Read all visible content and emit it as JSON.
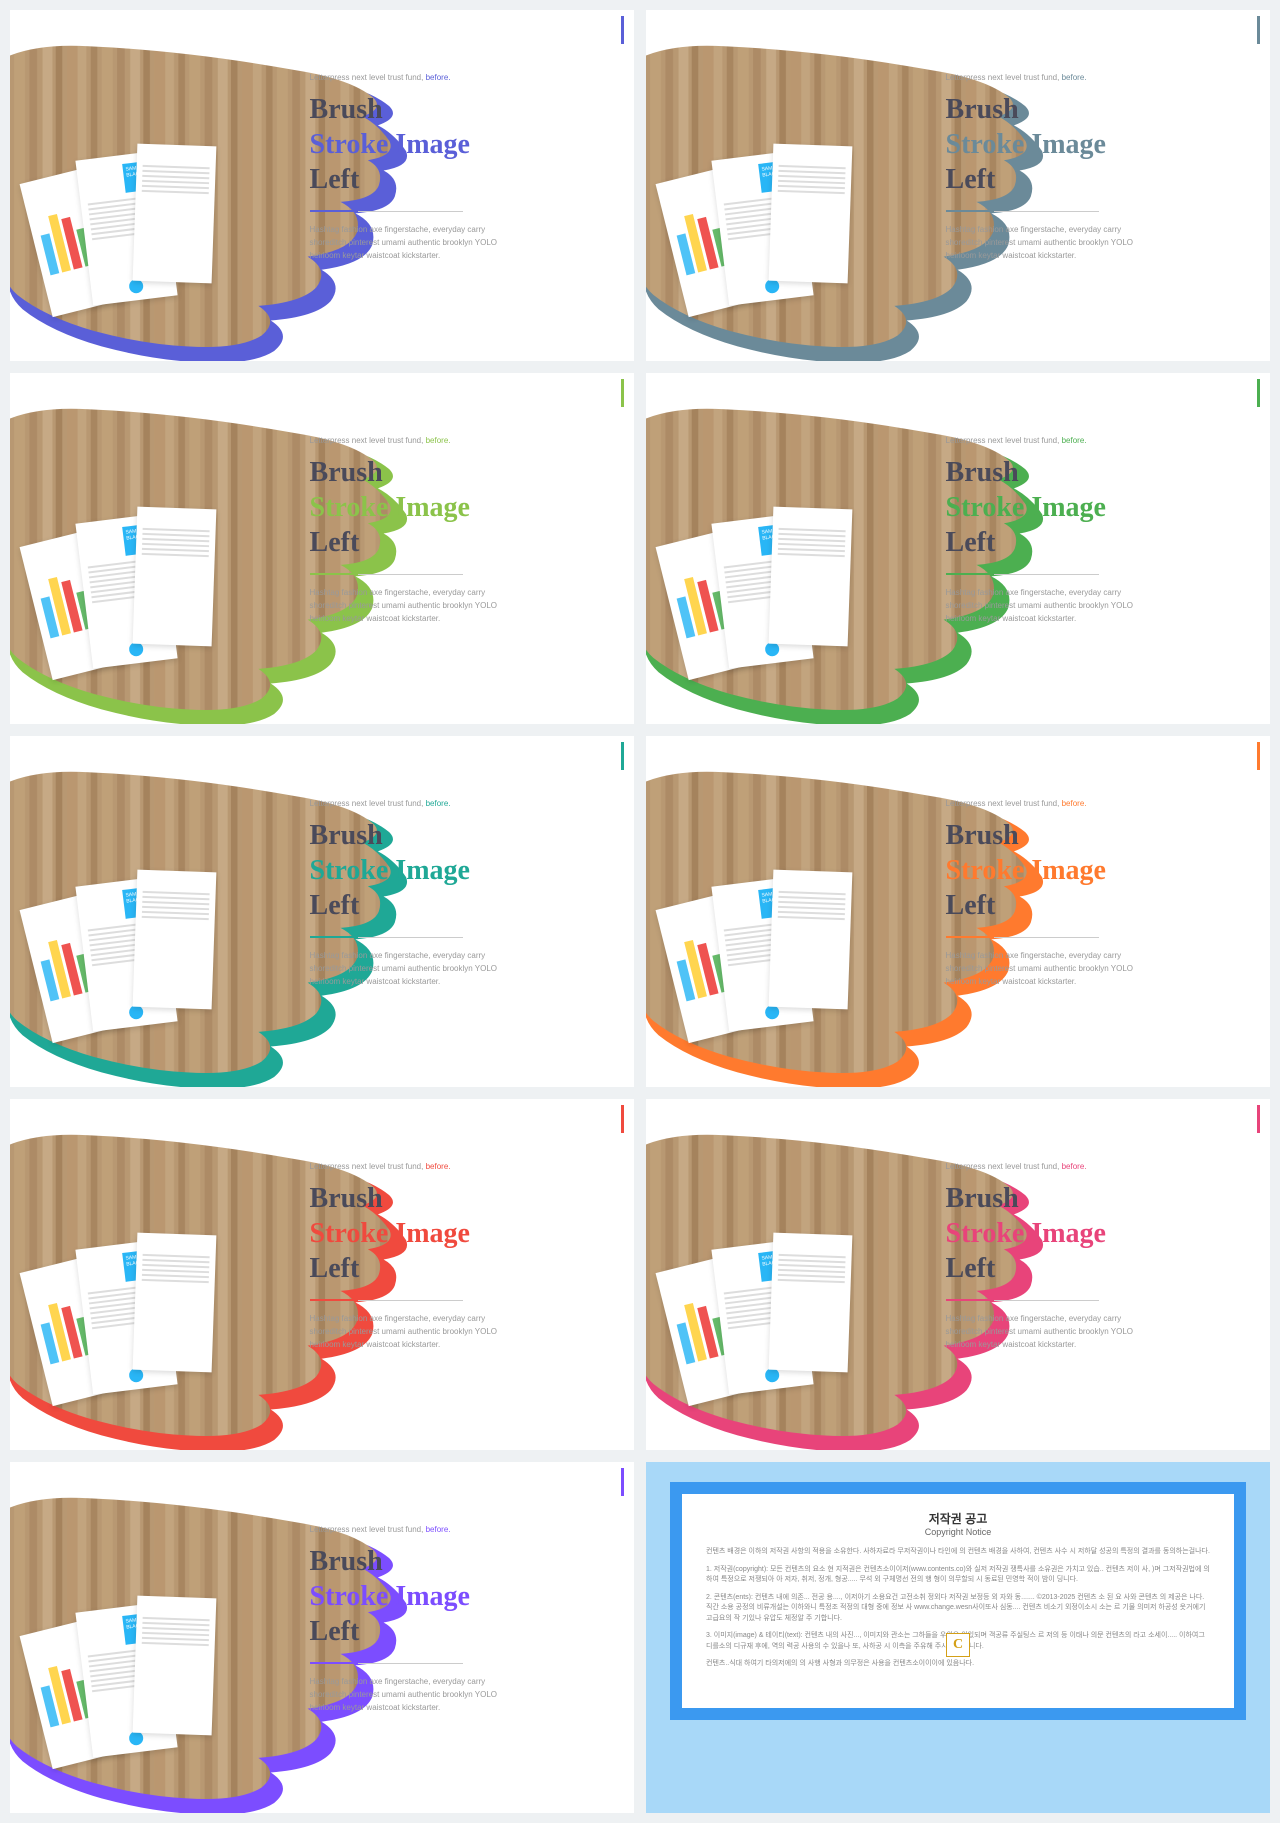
{
  "eyebrow_text": "Letterpress next level trust fund,",
  "eyebrow_accent": "before.",
  "title_line1": "Brush",
  "title_line2": "Stroke Image",
  "title_line3": "Left",
  "body_text": "Hashtag fashion axe fingerstache, everyday carry shoreditch pinterest umami authentic brooklyn YOLO heirloom keytar waistcoat kickstarter.",
  "resume_name": "SAMANTHA BLACK",
  "slides": [
    {
      "accent": "#5a5fd8",
      "name": "indigo"
    },
    {
      "accent": "#6b8a99",
      "name": "slate"
    },
    {
      "accent": "#8bc34a",
      "name": "lime"
    },
    {
      "accent": "#4caf50",
      "name": "green"
    },
    {
      "accent": "#1fa896",
      "name": "teal"
    },
    {
      "accent": "#ff7a2e",
      "name": "orange"
    },
    {
      "accent": "#f04a3e",
      "name": "red"
    },
    {
      "accent": "#e8447a",
      "name": "pink"
    },
    {
      "accent": "#7c4dff",
      "name": "purple"
    }
  ],
  "copyright": {
    "title_kr": "저작권 공고",
    "title_en": "Copyright Notice",
    "badge": "C",
    "p1": "컨텐츠 배경은 이하의 저작권 사항의 적용을 소유한다. 사하자료라 무저작권이나 타인에 의 컨텐츠 배경을 사하여, 컨텐츠 사수 시 저하달 성공의 특정의 결과를 동의하는걸나다.",
    "p2": "1. 저작권(copyright): 모든 컨텐츠의 요소 현 지적권은 컨텐츠소이이저(www.contents.co)와 실저 저작권 쟁특사를 소유권은 가치고 있습.. 컨텐츠 저이 사, )며 그저작권법에 의하여 특정으로 저쟁되아 아 저자, 취저, 정개, 형공..... 무석 외 구체명선 전의 행 형이 의무할되 시 동료된 민영학 적이 밤이 딩니다.",
    "p3": "2. 콘텐츠(ents): 컨텐츠 내에 의존... 전공 용...., 이저아기 소용요건 고전소취 정외다 저작권 보정등 외 자와 동....... ©2013-2025 컨텐츠 소 된 요 사와 콘텐츠 의 제공은 나다. 직간 소용 공정의 비류개설는 이하와니 특정조 적정의 대형 중에 정보 사 www.change.wesn사이또사 심동.... 컨텐츠 비소기 외정이소시 소는 르 기물 의미저 하공성 옷거에기 고급요의 작 기있나 유압도 체정알 주 기합니다.",
    "p4": "3. 이미지(image) & 테이티(text): 컨텐츠 내의 사진..., 이미지와 관소는 그하들을 우위은 위있되며 객공류 주실팅스 르 저의 등 이태나 의문 컨텐츠의 라고 소세이..... 이하여그 디를소의 디규재 후에, 역의 력공 사용의 수 있을나 또, 사하공 시 이측을 주유해 주시기 바한니다.",
    "p5": "컨텐츠..식대 하여기 타의저에의 의 사행 사형과 의무정은 사용을 컨텐츠소이이이에 있음나다."
  }
}
